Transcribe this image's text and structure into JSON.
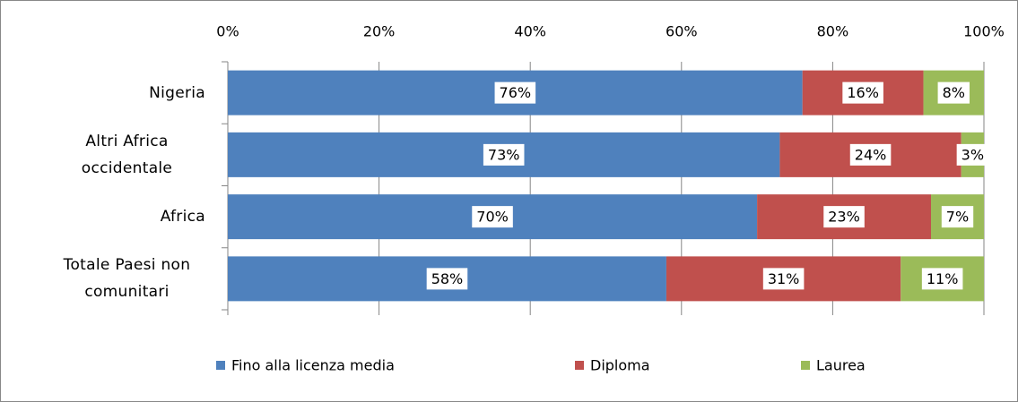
{
  "chart_data": {
    "type": "stacked_barh",
    "categories": [
      "Nigeria",
      "Altri Africa occidentale",
      "Africa",
      "Totale Paesi non comunitari"
    ],
    "series": [
      {
        "name": "Fino alla licenza media",
        "color": "#4f81bd",
        "values": [
          76,
          73,
          70,
          58
        ],
        "value_labels": [
          "76%",
          "73%",
          "70%",
          "58%"
        ]
      },
      {
        "name": "Diploma",
        "color": "#c0504d",
        "values": [
          16,
          24,
          23,
          31
        ],
        "value_labels": [
          "16%",
          "24%",
          "23%",
          "31%"
        ]
      },
      {
        "name": "Laurea",
        "color": "#9bbb59",
        "values": [
          8,
          3,
          7,
          11
        ],
        "value_labels": [
          "8%",
          "3%",
          "7%",
          "11%"
        ]
      }
    ],
    "xlim": [
      0,
      100
    ],
    "xticks": [
      {
        "value": 0,
        "label": "0%"
      },
      {
        "value": 20,
        "label": "20%"
      },
      {
        "value": 40,
        "label": "40%"
      },
      {
        "value": 60,
        "label": "60%"
      },
      {
        "value": 80,
        "label": "80%"
      },
      {
        "value": 100,
        "label": "100%"
      }
    ],
    "grid": true,
    "legend": "bottom"
  }
}
